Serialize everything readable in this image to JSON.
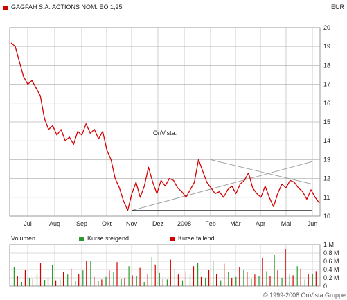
{
  "header": {
    "title": "GAGFAH S.A. ACTIONS NOM. EO 1,25",
    "currency": "EUR"
  },
  "watermark": "OnVista.",
  "volume_panel": {
    "label": "Volumen",
    "legend_up": "Kurse steigend",
    "legend_down": "Kurse fallend"
  },
  "copyright": "© 1999-2008 OnVista Gruppe",
  "colors": {
    "price_line": "#d40000",
    "volume_up": "#2a9a2a",
    "volume_down": "#d40000",
    "grid": "#b7b7b7",
    "trend": "#999999"
  },
  "chart_data": [
    {
      "type": "line",
      "title": "GAGFAH S.A. ACTIONS NOM. EO 1,25",
      "x_ticks": [
        "Jul",
        "Aug",
        "Sep",
        "Okt",
        "Nov",
        "Dez",
        "2008",
        "Feb",
        "Mär",
        "Apr",
        "Mai",
        "Jun"
      ],
      "y_ticks": [
        10,
        11,
        12,
        13,
        14,
        15,
        16,
        17,
        18,
        19,
        20
      ],
      "ylim": [
        10,
        20
      ],
      "grid": true,
      "series": [
        {
          "values": [
            19.2,
            19.0,
            18.2,
            17.4,
            17.0,
            17.2,
            16.8,
            16.4,
            15.2,
            14.6,
            14.8,
            14.3,
            14.6,
            14.0,
            14.2,
            13.8,
            14.5,
            14.3,
            14.9,
            14.4,
            14.6,
            14.1,
            14.5,
            13.5,
            13.0,
            12.0,
            11.5,
            10.8,
            10.3,
            11.2,
            11.8,
            11.0,
            11.6,
            12.6,
            11.8,
            11.2,
            11.9,
            11.6,
            12.0,
            11.9,
            11.5,
            11.3,
            11.0,
            11.4,
            11.8,
            13.0,
            12.4,
            11.8,
            11.5,
            11.2,
            11.3,
            11.0,
            11.4,
            11.6,
            11.2,
            11.7,
            11.9,
            12.3,
            11.5,
            11.2,
            11.0,
            11.6,
            11.0,
            10.5,
            11.2,
            11.7,
            11.5,
            11.9,
            11.8,
            11.5,
            11.3,
            10.9,
            11.4,
            11.0,
            10.7
          ]
        }
      ],
      "trendlines": [
        {
          "from": [
            "Nov",
            10.3
          ],
          "to": [
            "Jun",
            12.9
          ]
        },
        {
          "from": [
            "Feb",
            13.0
          ],
          "to": [
            "Jun",
            11.7
          ]
        },
        {
          "from": [
            "Nov",
            10.3
          ],
          "to": [
            "Jun",
            10.3
          ]
        }
      ]
    },
    {
      "type": "bar",
      "title": "Volumen",
      "y_ticks": [
        "1 M",
        "0.8 M",
        "0.6 M",
        "0.4 M",
        "0.2 M",
        "0"
      ],
      "ylim": [
        0,
        1.0
      ],
      "series": [
        {
          "name": "Kurse steigend",
          "values": [
            0.45,
            0.1,
            0.2,
            0.3,
            0.15,
            0.5,
            0.18,
            0.28,
            0.12,
            0.38,
            0.6,
            0.12,
            0.22,
            0.35,
            0.18,
            0.48,
            0.24,
            0.1,
            0.7,
            0.32,
            0.16,
            0.42,
            0.14,
            0.3,
            0.55,
            0.2,
            0.62,
            0.14,
            0.34,
            0.22,
            0.4,
            0.18,
            0.25,
            0.36,
            0.75,
            0.2,
            0.28,
            0.48,
            0.16,
            0.3
          ]
        },
        {
          "name": "Kurse fallend",
          "values": [
            0.25,
            0.4,
            0.18,
            0.55,
            0.2,
            0.14,
            0.35,
            0.42,
            0.3,
            0.6,
            0.22,
            0.16,
            0.38,
            0.58,
            0.2,
            0.26,
            0.44,
            0.3,
            0.52,
            0.18,
            0.64,
            0.28,
            0.36,
            0.48,
            0.22,
            0.4,
            0.3,
            0.54,
            0.2,
            0.46,
            0.34,
            0.28,
            0.68,
            0.24,
            0.38,
            0.9,
            0.26,
            0.42,
            0.3,
            0.36
          ]
        }
      ]
    }
  ]
}
